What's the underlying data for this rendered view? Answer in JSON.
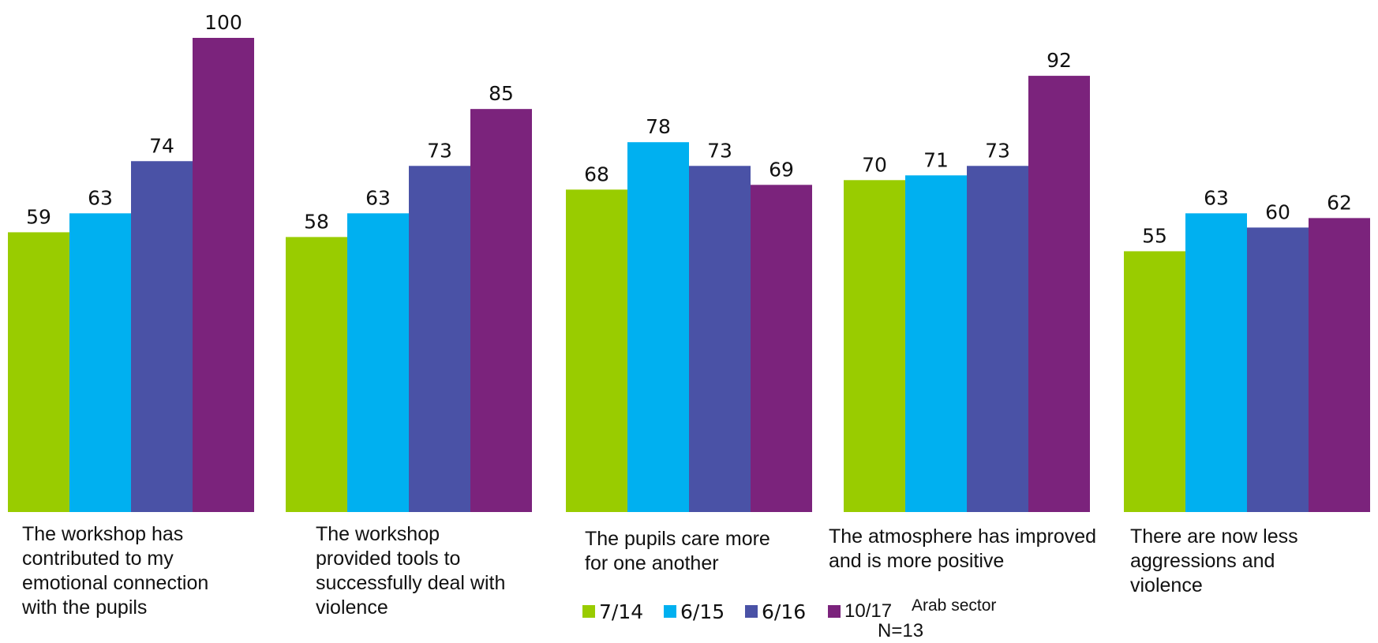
{
  "chart_data": {
    "type": "bar",
    "categories": [
      "The workshop has\ncontributed to my\nemotional connection\nwith the pupils",
      "The workshop\nprovided tools to\nsuccessfully deal with\nviolence",
      "The pupils care more\nfor one another",
      " The atmosphere has improved\nand is more positive",
      "There  are now less\naggressions and\nviolence"
    ],
    "series": [
      {
        "name": "7/14",
        "color": "#99CC00",
        "values": [
          59,
          58,
          68,
          70,
          55
        ]
      },
      {
        "name": "6/15",
        "color": "#00B0F0",
        "values": [
          63,
          63,
          78,
          71,
          63
        ]
      },
      {
        "name": "6/16",
        "color": "#4A52A6",
        "values": [
          74,
          73,
          73,
          73,
          60
        ]
      },
      {
        "name": "10/17",
        "color": "#7B237C",
        "values": [
          100,
          85,
          69,
          92,
          62
        ]
      }
    ],
    "ylim": [
      0,
      100
    ],
    "grid": false,
    "legend_position": "bottom"
  },
  "notes": {
    "sector": "Arab sector",
    "n": "N=13"
  }
}
